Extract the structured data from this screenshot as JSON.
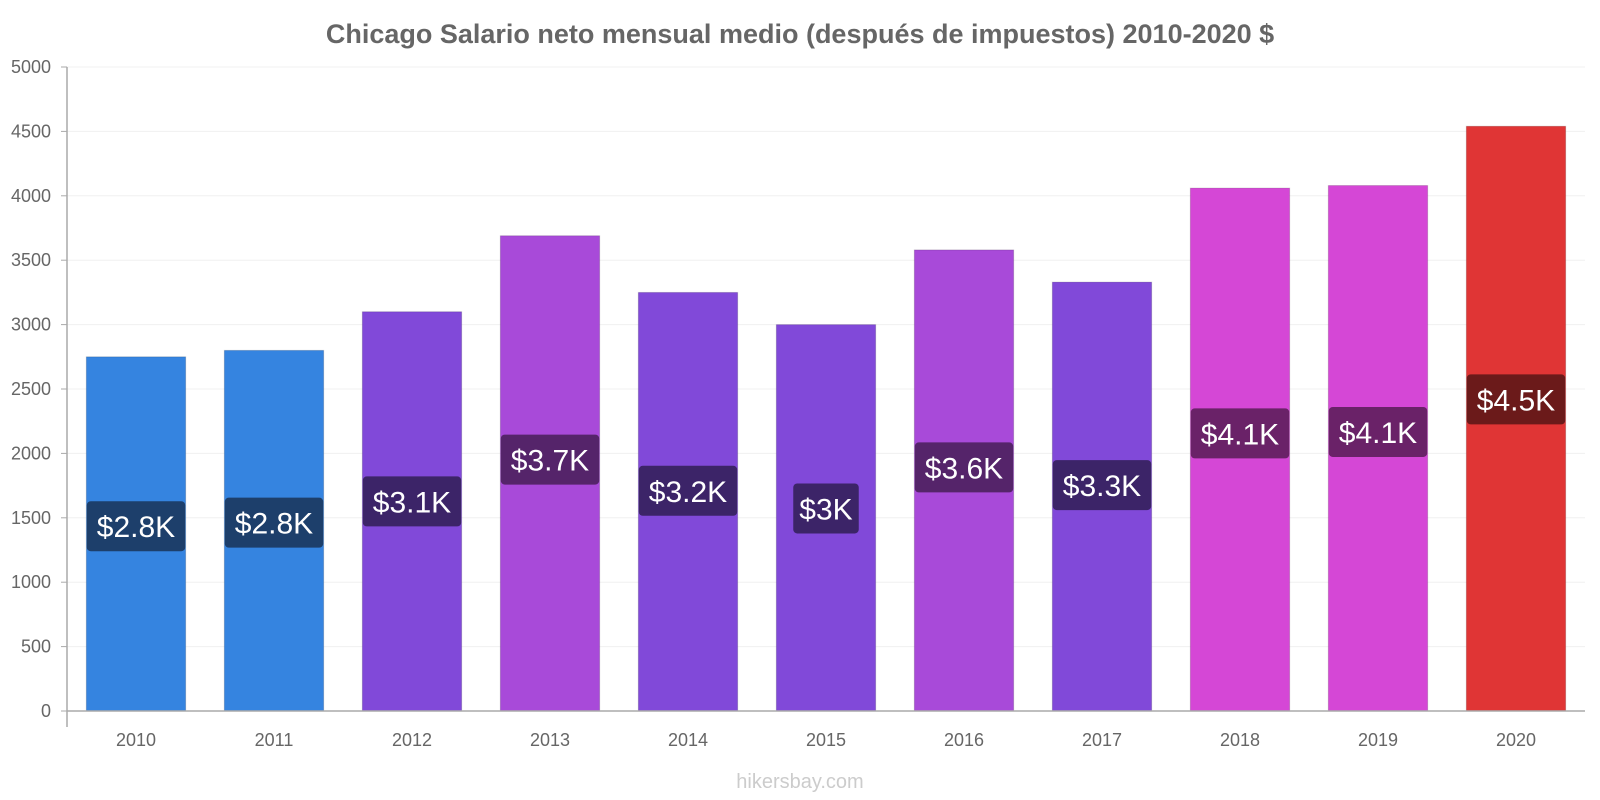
{
  "chart_data": {
    "type": "bar",
    "title": "Chicago Salario neto mensual medio (después de impuestos) 2010-2020 $",
    "xlabel": "",
    "ylabel": "",
    "ylim": [
      0,
      5000
    ],
    "yticks": [
      "0",
      "500",
      "1000",
      "1500",
      "2000",
      "2500",
      "3000",
      "3500",
      "4000",
      "4500",
      "5000"
    ],
    "categories": [
      "2010",
      "2011",
      "2012",
      "2013",
      "2014",
      "2015",
      "2016",
      "2017",
      "2018",
      "2019",
      "2020"
    ],
    "values": [
      2750,
      2800,
      3100,
      3690,
      3250,
      3000,
      3580,
      3330,
      4060,
      4080,
      4540
    ],
    "data_labels": [
      "$2.8K",
      "$2.8K",
      "$3.1K",
      "$3.7K",
      "$3.2K",
      "$3K",
      "$3.6K",
      "$3.3K",
      "$4.1K",
      "$4.1K",
      "$4.5K"
    ],
    "bar_colors": [
      "#3584e0",
      "#3584e0",
      "#8149d9",
      "#a84ad9",
      "#8149d9",
      "#8149d9",
      "#a84ad9",
      "#8149d9",
      "#d547d6",
      "#d547d6",
      "#e03535"
    ],
    "label_bg_colors": [
      "#1d3f6b",
      "#1d3f6b",
      "#3c2468",
      "#55246a",
      "#3c2468",
      "#3c2468",
      "#55246a",
      "#3c2468",
      "#6a2268",
      "#6a2268",
      "#6b1a1a"
    ],
    "grid": true,
    "legend": "none"
  },
  "footer": {
    "source": "hikersbay.com"
  }
}
